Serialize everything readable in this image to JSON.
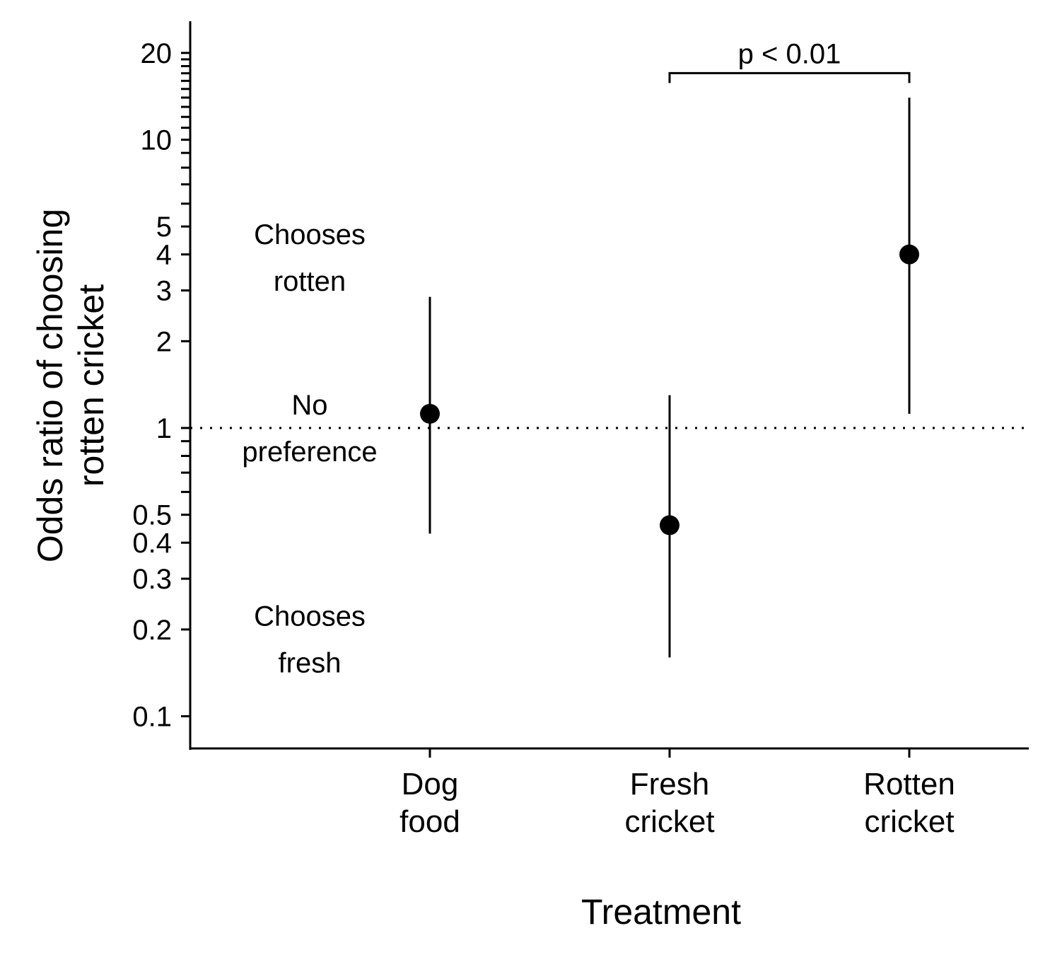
{
  "chart_data": {
    "type": "scatter",
    "subtype": "point-range (odds ratio with confidence interval)",
    "xlabel": "Treatment",
    "ylabel_lines": [
      "Odds ratio of choosing",
      "rotten cricket"
    ],
    "y_scale": "log",
    "ylim": [
      0.075,
      25
    ],
    "y_ticks": [
      0.1,
      0.2,
      0.3,
      0.4,
      0.5,
      1,
      2,
      3,
      4,
      5,
      10,
      20
    ],
    "y_tick_labels": [
      "0.1",
      "0.2",
      "0.3",
      "0.4",
      "0.5",
      "1",
      "2",
      "3",
      "4",
      "5",
      "10",
      "20"
    ],
    "y_minor_ticks": [
      0.6,
      0.7,
      0.8,
      0.9,
      6,
      7,
      8,
      9,
      11,
      12,
      13,
      14,
      15,
      16,
      17,
      18,
      19
    ],
    "categories": [
      {
        "lines": [
          "Dog",
          "food"
        ]
      },
      {
        "lines": [
          "Fresh",
          "cricket"
        ]
      },
      {
        "lines": [
          "Rotten",
          "cricket"
        ]
      }
    ],
    "points": [
      {
        "estimate": 1.12,
        "lower": 0.43,
        "upper": 2.85
      },
      {
        "estimate": 0.46,
        "lower": 0.16,
        "upper": 1.3
      },
      {
        "estimate": 4.0,
        "lower": 1.12,
        "upper": 14.0
      }
    ],
    "reference_line": {
      "y": 1,
      "style": "dotted"
    },
    "region_annotations": [
      {
        "lines": [
          "Chooses",
          "rotten"
        ],
        "y": 3.9
      },
      {
        "lines": [
          "No",
          "preference"
        ],
        "y": 1
      },
      {
        "lines": [
          "Chooses",
          "fresh"
        ],
        "y": 0.185
      }
    ],
    "significance": {
      "from": 1,
      "to": 2,
      "label": "p < 0.01",
      "y": 16
    },
    "grid": false,
    "legend": "none"
  }
}
